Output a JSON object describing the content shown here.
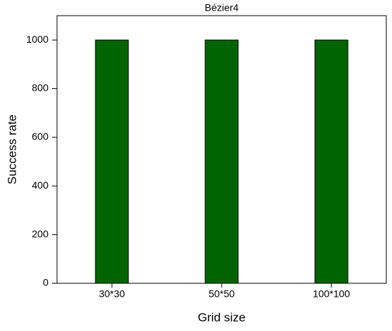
{
  "chart_data": {
    "type": "bar",
    "title": "Bézier4",
    "x_label": "Grid size",
    "y_label": "Success rate",
    "categories": [
      "30*30",
      "50*50",
      "100*100"
    ],
    "values": [
      1000,
      1000,
      1000
    ],
    "color": "#006400",
    "ylim": [
      0,
      1100
    ],
    "yticks": [
      0,
      200,
      400,
      600,
      800,
      1000
    ],
    "grid": false
  }
}
